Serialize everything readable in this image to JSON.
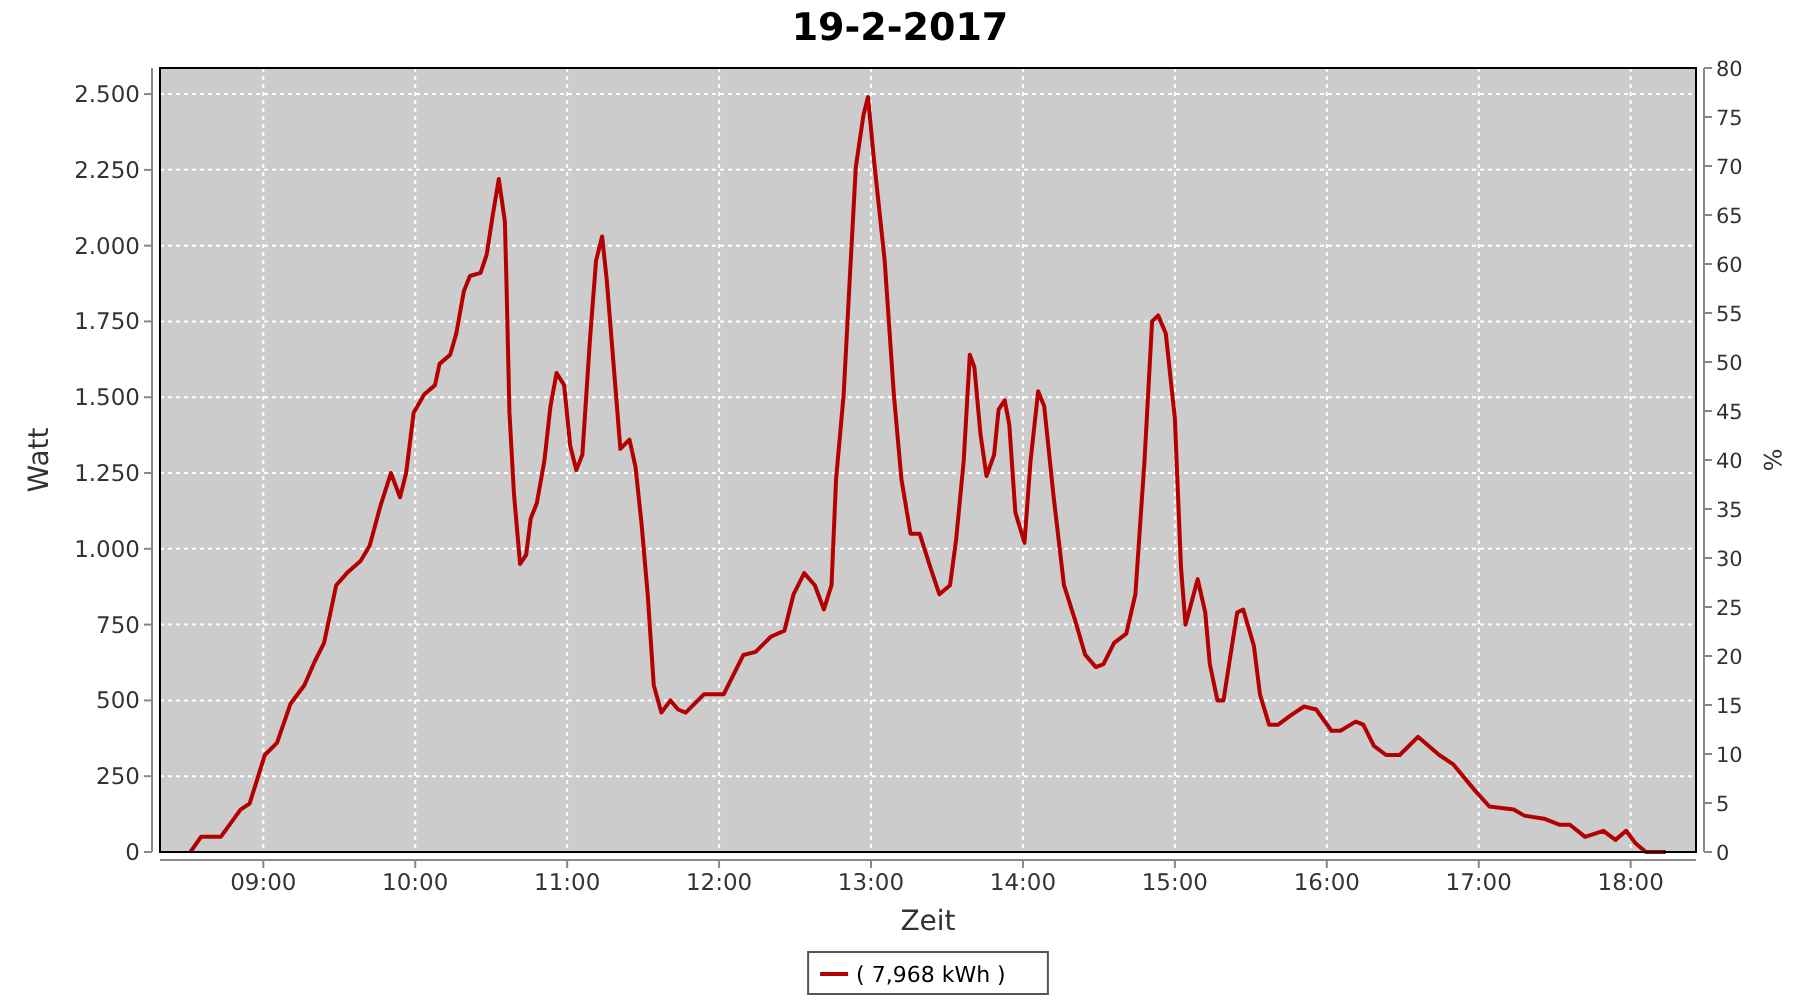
{
  "chart_data": {
    "type": "line",
    "title": "19-2-2017",
    "xlabel": "Zeit",
    "ylabel": "Watt",
    "y2label": "%",
    "xlim": [
      8.32,
      18.43
    ],
    "xticks": [
      {
        "value": 9,
        "label": "09:00"
      },
      {
        "value": 10,
        "label": "10:00"
      },
      {
        "value": 11,
        "label": "11:00"
      },
      {
        "value": 12,
        "label": "12:00"
      },
      {
        "value": 13,
        "label": "13:00"
      },
      {
        "value": 14,
        "label": "14:00"
      },
      {
        "value": 15,
        "label": "15:00"
      },
      {
        "value": 16,
        "label": "16:00"
      },
      {
        "value": 17,
        "label": "17:00"
      },
      {
        "value": 18,
        "label": "18:00"
      }
    ],
    "ylim": [
      0,
      2586
    ],
    "yticks": [
      0,
      250,
      500,
      750,
      {
        "value": 1000,
        "label": "1.000"
      },
      {
        "value": 1250,
        "label": "1.250"
      },
      {
        "value": 1500,
        "label": "1.500"
      },
      {
        "value": 1750,
        "label": "1.750"
      },
      {
        "value": 2000,
        "label": "2.000"
      },
      {
        "value": 2250,
        "label": "2.250"
      },
      {
        "value": 2500,
        "label": "2.500"
      }
    ],
    "y2lim": [
      0,
      80
    ],
    "y2ticks": [
      0,
      5,
      10,
      15,
      20,
      25,
      30,
      35,
      40,
      45,
      50,
      55,
      60,
      65,
      70,
      75,
      80
    ],
    "grid": true,
    "legend": "bottom",
    "line_style": "solid",
    "series": [
      {
        "name": "( 7,968 kWh )",
        "color": "#b40000",
        "x": [
          8.52,
          8.59,
          8.72,
          8.85,
          8.91,
          9.01,
          9.09,
          9.18,
          9.27,
          9.34,
          9.4,
          9.48,
          9.55,
          9.64,
          9.7,
          9.77,
          9.84,
          9.9,
          9.94,
          9.99,
          10.06,
          10.13,
          10.16,
          10.23,
          10.27,
          10.32,
          10.36,
          10.43,
          10.47,
          10.51,
          10.55,
          10.59,
          10.6,
          10.62,
          10.65,
          10.69,
          10.73,
          10.76,
          10.8,
          10.85,
          10.89,
          10.93,
          10.98,
          11.02,
          11.06,
          11.1,
          11.15,
          11.19,
          11.23,
          11.26,
          11.31,
          11.35,
          11.41,
          11.45,
          11.49,
          11.53,
          11.57,
          11.62,
          11.68,
          11.73,
          11.78,
          11.9,
          12.03,
          12.16,
          12.24,
          12.34,
          12.43,
          12.49,
          12.56,
          12.63,
          12.69,
          12.74,
          12.77,
          12.82,
          12.86,
          12.9,
          12.95,
          12.98,
          13.02,
          13.09,
          13.15,
          13.2,
          13.26,
          13.32,
          13.39,
          13.45,
          13.52,
          13.56,
          13.61,
          13.65,
          13.68,
          13.72,
          13.76,
          13.81,
          13.84,
          13.88,
          13.91,
          13.95,
          14.01,
          14.05,
          14.1,
          14.14,
          14.2,
          14.27,
          14.34,
          14.41,
          14.48,
          14.53,
          14.6,
          14.68,
          14.74,
          14.8,
          14.85,
          14.89,
          14.94,
          15.0,
          15.04,
          15.07,
          15.15,
          15.2,
          15.23,
          15.28,
          15.32,
          15.36,
          15.41,
          15.45,
          15.52,
          15.56,
          15.62,
          15.68,
          15.76,
          15.85,
          15.93,
          16.03,
          16.09,
          16.19,
          16.24,
          16.31,
          16.39,
          16.48,
          16.6,
          16.74,
          16.83,
          16.98,
          17.07,
          17.23,
          17.3,
          17.43,
          17.53,
          17.6,
          17.7,
          17.82,
          17.9,
          17.97,
          18.03,
          18.1,
          18.23
        ],
        "values": [
          0,
          50,
          50,
          140,
          160,
          320,
          360,
          490,
          550,
          630,
          690,
          880,
          920,
          960,
          1010,
          1140,
          1250,
          1170,
          1250,
          1450,
          1510,
          1540,
          1610,
          1640,
          1710,
          1850,
          1900,
          1910,
          1970,
          2100,
          2220,
          2080,
          1890,
          1450,
          1180,
          950,
          980,
          1100,
          1150,
          1290,
          1470,
          1580,
          1540,
          1340,
          1260,
          1310,
          1690,
          1950,
          2030,
          1890,
          1580,
          1330,
          1360,
          1270,
          1080,
          850,
          550,
          460,
          500,
          470,
          460,
          520,
          520,
          650,
          660,
          710,
          730,
          850,
          920,
          880,
          800,
          880,
          1230,
          1510,
          1890,
          2260,
          2430,
          2490,
          2280,
          1950,
          1510,
          1230,
          1050,
          1050,
          940,
          850,
          880,
          1030,
          1290,
          1640,
          1600,
          1380,
          1240,
          1310,
          1460,
          1490,
          1410,
          1120,
          1020,
          1290,
          1520,
          1470,
          1180,
          880,
          770,
          650,
          610,
          620,
          690,
          720,
          850,
          1290,
          1750,
          1770,
          1710,
          1430,
          940,
          750,
          900,
          790,
          620,
          500,
          500,
          630,
          790,
          800,
          680,
          520,
          420,
          420,
          450,
          480,
          470,
          400,
          400,
          430,
          420,
          350,
          320,
          320,
          380,
          320,
          290,
          200,
          150,
          140,
          120,
          110,
          90,
          90,
          50,
          70,
          40,
          70,
          30,
          0,
          0
        ]
      }
    ]
  }
}
